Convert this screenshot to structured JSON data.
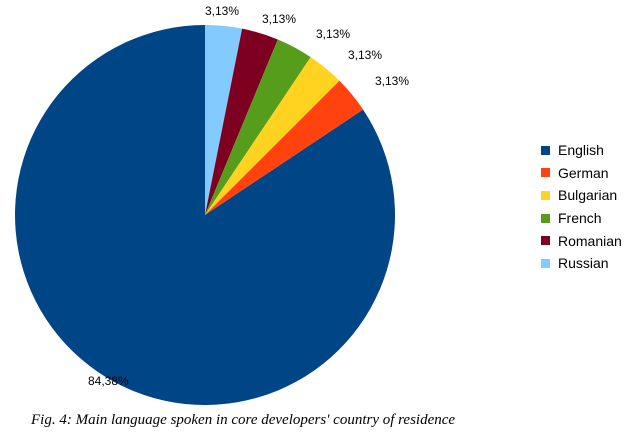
{
  "chart_data": {
    "type": "pie",
    "title": "",
    "categories": [
      "English",
      "German",
      "Bulgarian",
      "French",
      "Romanian",
      "Russian"
    ],
    "values": [
      84.38,
      3.13,
      3.13,
      3.13,
      3.13,
      3.13
    ],
    "data_labels": [
      "84,38%",
      "3,13%",
      "3,13%",
      "3,13%",
      "3,13%",
      "3,13%"
    ],
    "colors": [
      "#004586",
      "#ff420e",
      "#ffd320",
      "#579d1c",
      "#7e0021",
      "#83caff"
    ],
    "start_angle": "12 o'clock",
    "direction": "clockwise",
    "legend_position": "right"
  },
  "caption": "Fig. 4: Main language spoken in core developers' country of residence"
}
